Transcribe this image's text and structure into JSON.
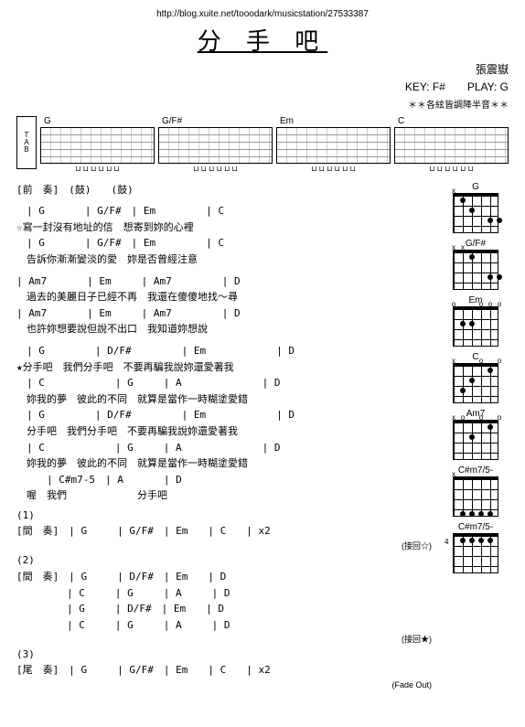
{
  "url": "http://blog.xuite.net/tooodark/musicstation/27533387",
  "title": "分 手 吧",
  "artist": "張震嶽",
  "key": "KEY: F#",
  "play": "PLAY: G",
  "tuning_note": "＊＊各絃皆調降半音＊＊",
  "tab_chords": [
    "G",
    "G/F#",
    "Em",
    "C"
  ],
  "intro_label": "[前　奏]",
  "intro_marks": [
    "(鼓)",
    "(鼓)"
  ],
  "verse1": [
    {
      "chords": "　| G　　　　| G/F#　| Em　　　　　| C",
      "lyrics": "☆寫一封沒有地址的信　想寄到妳的心裡"
    },
    {
      "chords": "　| G　　　　| G/F#　| Em　　　　　| C",
      "lyrics": "　告訴你漸漸變淡的愛　妳是否曾經注意"
    }
  ],
  "verse2": [
    {
      "chords": "| Am7　　　　| Em　　　| Am7　　　　　| D",
      "lyrics": "　過去的美麗日子已經不再　我還在傻傻地找～尋"
    },
    {
      "chords": "| Am7　　　　| Em　　　| Am7　　　　　| D",
      "lyrics": "　也許妳想要說但說不出口　我知道妳想說"
    }
  ],
  "chorus": [
    {
      "chords": "　| G　　　　　| D/F#　　　　　| Em　　　　　　　| D",
      "lyrics": "★分手吧　我們分手吧　不要再騙我說妳還愛著我"
    },
    {
      "chords": "　| C　　　　　　　| G　　　| A　　　　　　　　| D",
      "lyrics": "　妳我的夢　彼此的不同　就算是當作一時糊塗愛錯"
    },
    {
      "chords": "　| G　　　　　| D/F#　　　　　| Em　　　　　　　| D",
      "lyrics": "　分手吧　我們分手吧　不要再騙我說妳還愛著我"
    },
    {
      "chords": "　| C　　　　　　　| G　　　| A　　　　　　　　| D",
      "lyrics": "　妳我的夢　彼此的不同　就算是當作一時糊塗愛錯"
    },
    {
      "chords": "　　　| C#m7-5　| A　　　　| D",
      "lyrics": "　喔　我們　　　　　　　分手吧"
    }
  ],
  "interlude1": {
    "num": "(1)",
    "label": "[間　奏]",
    "chords": "| G　　　| G/F#　| Em　　| C　　| x2",
    "back": "(接回☆)"
  },
  "interlude2": {
    "num": "(2)",
    "label": "[間　奏]",
    "rows": [
      "| G　　　| D/F#　| Em　　| D",
      "| C　　　| G　　　| A　　　| D",
      "| G　　　| D/F#　| Em　　| D",
      "| C　　　| G　　　| A　　　| D"
    ],
    "back": "(接回★)"
  },
  "outro": {
    "num": "(3)",
    "label": "[尾　奏]",
    "chords": "| G　　　| G/F#　| Em　　| C　　| x2",
    "fade": "(Fade Out)"
  },
  "diagrams": [
    {
      "name": "G",
      "xo": [
        [
          "x",
          0
        ]
      ],
      "dots": [
        [
          20,
          16
        ],
        [
          50,
          27
        ],
        [
          40,
          27
        ],
        [
          10,
          5
        ]
      ]
    },
    {
      "name": "G/F#",
      "xo": [
        [
          "x",
          0
        ],
        [
          "x",
          10
        ]
      ],
      "dots": [
        [
          20,
          5
        ],
        [
          50,
          27
        ],
        [
          40,
          27
        ]
      ]
    },
    {
      "name": "Em",
      "xo": [
        [
          "o",
          0
        ],
        [
          "o",
          30
        ],
        [
          "o",
          40
        ],
        [
          "o",
          50
        ]
      ],
      "dots": [
        [
          10,
          16
        ],
        [
          20,
          16
        ]
      ]
    },
    {
      "name": "C",
      "xo": [
        [
          "x",
          0
        ],
        [
          "o",
          30
        ],
        [
          "o",
          50
        ]
      ],
      "dots": [
        [
          10,
          27
        ],
        [
          20,
          16
        ],
        [
          40,
          5
        ]
      ]
    },
    {
      "name": "Am7",
      "xo": [
        [
          "x",
          0
        ],
        [
          "o",
          10
        ],
        [
          "o",
          30
        ],
        [
          "o",
          50
        ]
      ],
      "dots": [
        [
          20,
          16
        ],
        [
          40,
          5
        ]
      ]
    },
    {
      "name": "C#m7/5-",
      "xo": [
        [
          "x",
          0
        ]
      ],
      "dots": [
        [
          10,
          38
        ],
        [
          20,
          38
        ],
        [
          30,
          38
        ],
        [
          40,
          38
        ]
      ]
    },
    {
      "name": "C#m7/5-",
      "xo": [],
      "dots": [
        [
          10,
          5
        ],
        [
          20,
          5
        ],
        [
          30,
          5
        ],
        [
          40,
          5
        ]
      ],
      "fret": "4"
    }
  ]
}
